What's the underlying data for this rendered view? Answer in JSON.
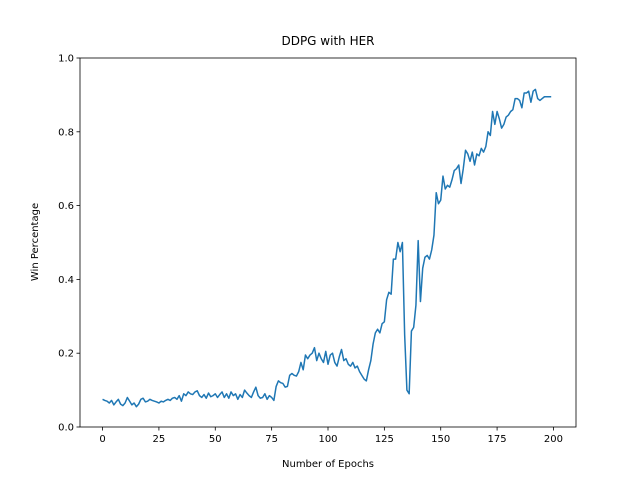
{
  "chart_data": {
    "type": "line",
    "title": "DDPG with HER",
    "x_label": "Number of Epochs",
    "y_label": "Win Percentage",
    "x": [
      0,
      1,
      2,
      3,
      4,
      5,
      6,
      7,
      8,
      9,
      10,
      11,
      12,
      13,
      14,
      15,
      16,
      17,
      18,
      19,
      20,
      21,
      22,
      23,
      24,
      25,
      26,
      27,
      28,
      29,
      30,
      31,
      32,
      33,
      34,
      35,
      36,
      37,
      38,
      39,
      40,
      41,
      42,
      43,
      44,
      45,
      46,
      47,
      48,
      49,
      50,
      51,
      52,
      53,
      54,
      55,
      56,
      57,
      58,
      59,
      60,
      61,
      62,
      63,
      64,
      65,
      66,
      67,
      68,
      69,
      70,
      71,
      72,
      73,
      74,
      75,
      76,
      77,
      78,
      79,
      80,
      81,
      82,
      83,
      84,
      85,
      86,
      87,
      88,
      89,
      90,
      91,
      92,
      93,
      94,
      95,
      96,
      97,
      98,
      99,
      100,
      101,
      102,
      103,
      104,
      105,
      106,
      107,
      108,
      109,
      110,
      111,
      112,
      113,
      114,
      115,
      116,
      117,
      118,
      119,
      120,
      121,
      122,
      123,
      124,
      125,
      126,
      127,
      128,
      129,
      130,
      131,
      132,
      133,
      134,
      135,
      136,
      137,
      138,
      139,
      140,
      141,
      142,
      143,
      144,
      145,
      146,
      147,
      148,
      149,
      150,
      151,
      152,
      153,
      154,
      155,
      156,
      157,
      158,
      159,
      160,
      161,
      162,
      163,
      164,
      165,
      166,
      167,
      168,
      169,
      170,
      171,
      172,
      173,
      174,
      175,
      176,
      177,
      178,
      179,
      180,
      181,
      182,
      183,
      184,
      185,
      186,
      187,
      188,
      189,
      190,
      191,
      192,
      193,
      194,
      195,
      196,
      197,
      198,
      199
    ],
    "series": [
      {
        "color": "#1f77b4",
        "values": [
          0.075,
          0.072,
          0.07,
          0.065,
          0.072,
          0.06,
          0.068,
          0.075,
          0.062,
          0.058,
          0.065,
          0.08,
          0.07,
          0.06,
          0.065,
          0.055,
          0.062,
          0.075,
          0.078,
          0.068,
          0.07,
          0.075,
          0.072,
          0.07,
          0.068,
          0.065,
          0.07,
          0.068,
          0.072,
          0.075,
          0.072,
          0.078,
          0.08,
          0.075,
          0.085,
          0.07,
          0.09,
          0.085,
          0.095,
          0.09,
          0.088,
          0.095,
          0.098,
          0.085,
          0.08,
          0.088,
          0.078,
          0.092,
          0.082,
          0.085,
          0.09,
          0.08,
          0.088,
          0.095,
          0.08,
          0.09,
          0.078,
          0.095,
          0.085,
          0.09,
          0.075,
          0.088,
          0.08,
          0.1,
          0.092,
          0.085,
          0.08,
          0.095,
          0.108,
          0.085,
          0.078,
          0.08,
          0.09,
          0.075,
          0.085,
          0.08,
          0.072,
          0.11,
          0.125,
          0.12,
          0.118,
          0.108,
          0.11,
          0.14,
          0.145,
          0.14,
          0.138,
          0.15,
          0.175,
          0.155,
          0.195,
          0.185,
          0.195,
          0.2,
          0.215,
          0.18,
          0.2,
          0.185,
          0.175,
          0.205,
          0.17,
          0.195,
          0.2,
          0.175,
          0.165,
          0.19,
          0.21,
          0.18,
          0.185,
          0.17,
          0.165,
          0.175,
          0.16,
          0.165,
          0.15,
          0.14,
          0.13,
          0.125,
          0.155,
          0.18,
          0.225,
          0.255,
          0.265,
          0.255,
          0.28,
          0.285,
          0.345,
          0.365,
          0.36,
          0.455,
          0.455,
          0.5,
          0.475,
          0.5,
          0.25,
          0.1,
          0.09,
          0.26,
          0.27,
          0.33,
          0.505,
          0.34,
          0.43,
          0.46,
          0.465,
          0.455,
          0.48,
          0.52,
          0.635,
          0.605,
          0.615,
          0.68,
          0.645,
          0.655,
          0.65,
          0.67,
          0.695,
          0.7,
          0.71,
          0.66,
          0.7,
          0.75,
          0.74,
          0.72,
          0.745,
          0.71,
          0.74,
          0.735,
          0.755,
          0.745,
          0.76,
          0.8,
          0.79,
          0.855,
          0.82,
          0.855,
          0.835,
          0.81,
          0.82,
          0.84,
          0.845,
          0.855,
          0.86,
          0.89,
          0.89,
          0.885,
          0.865,
          0.905,
          0.905,
          0.91,
          0.88,
          0.91,
          0.915,
          0.89,
          0.885,
          0.89,
          0.895,
          0.895,
          0.895,
          0.895
        ]
      }
    ],
    "xlim": [
      -10,
      210
    ],
    "ylim": [
      0,
      1
    ],
    "xticks": [
      0,
      25,
      50,
      75,
      100,
      125,
      150,
      175,
      200
    ],
    "yticks": [
      {
        "value": 0,
        "label": "0.0"
      },
      {
        "value": 0.2,
        "label": "0.2"
      },
      {
        "value": 0.4,
        "label": "0.4"
      },
      {
        "value": 0.6,
        "label": "0.6"
      },
      {
        "value": 0.8,
        "label": "0.8"
      },
      {
        "value": 1,
        "label": "1.0"
      }
    ]
  }
}
